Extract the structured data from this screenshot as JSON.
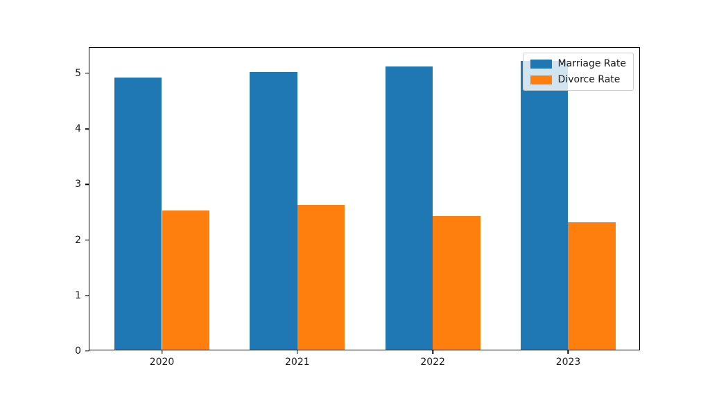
{
  "chart_data": {
    "type": "bar",
    "categories": [
      "2020",
      "2021",
      "2022",
      "2023"
    ],
    "series": [
      {
        "name": "Marriage Rate",
        "color": "#1f77b4",
        "values": [
          4.9,
          5.0,
          5.1,
          5.2
        ]
      },
      {
        "name": "Divorce Rate",
        "color": "#ff7f0e",
        "values": [
          2.5,
          2.6,
          2.4,
          2.3
        ]
      }
    ],
    "title": "",
    "xlabel": "",
    "ylabel": "",
    "yticks": [
      0,
      1,
      2,
      3,
      4,
      5
    ],
    "ylim": [
      0,
      5.46
    ],
    "xlim": [
      -0.535,
      3.535
    ],
    "bar_width": 0.35,
    "grid": false,
    "legend_position": "upper right",
    "background_color": "#ffffff",
    "spine_color": "#000000",
    "text_color": "#1a1a1a"
  }
}
